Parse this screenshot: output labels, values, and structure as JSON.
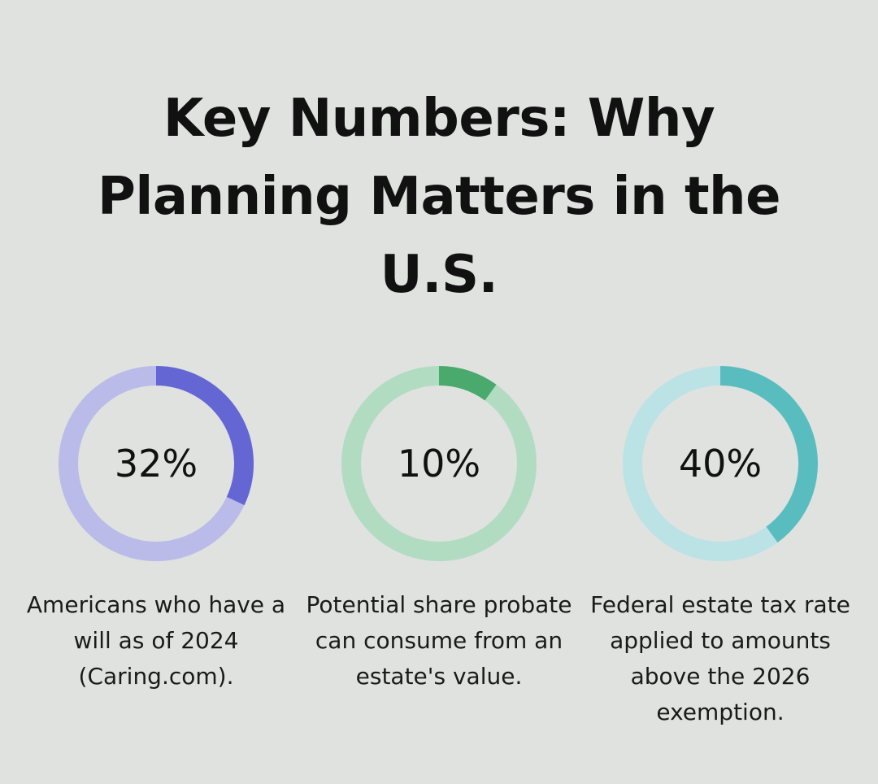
{
  "title": "Key Numbers: Why Planning Matters in the U.S.",
  "chart_data": [
    {
      "type": "pie",
      "value": 32,
      "label": "32%",
      "caption": "Americans who have a will as of 2024 (Caring.com).",
      "color": "#6466d3",
      "track_color": "#babbe9"
    },
    {
      "type": "pie",
      "value": 10,
      "label": "10%",
      "caption": "Potential share probate can consume from an estate's value.",
      "color": "#4aa96c",
      "track_color": "#b1dcc2"
    },
    {
      "type": "pie",
      "value": 40,
      "label": "40%",
      "caption": "Federal estate tax rate applied to amounts above the 2026 exemption.",
      "color": "#59bdc0",
      "track_color": "#bbe2e5"
    }
  ]
}
